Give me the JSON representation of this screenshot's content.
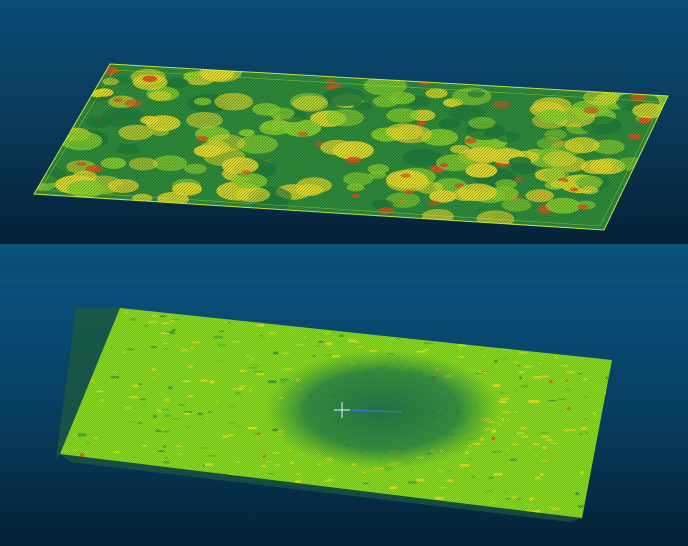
{
  "colors": {
    "background_top": "#0a4b74",
    "background_bottom": "#052236",
    "divider": "#0b5278",
    "low": "#1f7a3a",
    "mid": "#8fd62a",
    "high": "#f0e028",
    "peak": "#e8501a",
    "bbox": "#d8f040"
  },
  "views": {
    "top": {
      "name": "point-cloud-surface-3d"
    },
    "bottom": {
      "name": "point-cloud-plane-view"
    }
  }
}
